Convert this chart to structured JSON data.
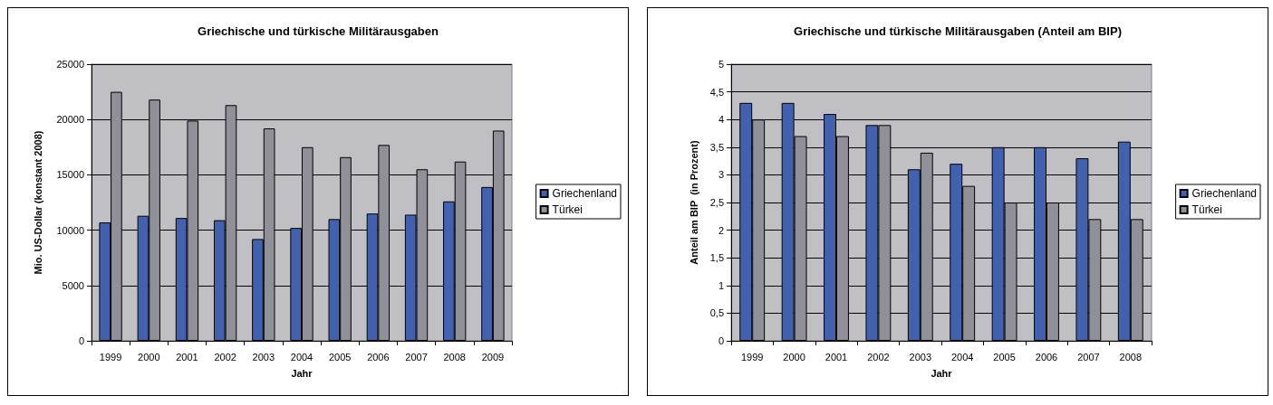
{
  "chart_data": [
    {
      "type": "bar",
      "title": "Griechische und türkische Militärausgaben",
      "xlabel": "Jahr",
      "ylabel": "Mio. US-Dollar (konstant 2008)",
      "categories": [
        "1999",
        "2000",
        "2001",
        "2002",
        "2003",
        "2004",
        "2005",
        "2006",
        "2007",
        "2008",
        "2009"
      ],
      "series": [
        {
          "name": "Griechenland",
          "color": "#4262b0",
          "values": [
            10700,
            11300,
            11100,
            10900,
            9200,
            10200,
            11000,
            11500,
            11400,
            12600,
            13900
          ]
        },
        {
          "name": "Türkei",
          "color": "#909098",
          "values": [
            22500,
            21800,
            19900,
            21300,
            19200,
            17500,
            16600,
            17700,
            15500,
            16200,
            19000
          ]
        }
      ],
      "ylim": [
        0,
        25000
      ],
      "yticks": [
        0,
        5000,
        10000,
        15000,
        20000,
        25000
      ],
      "grid": "y",
      "legend": "right"
    },
    {
      "type": "bar",
      "title": "Griechische und türkische Militärausgaben (Anteil am BIP)",
      "xlabel": "Jahr",
      "ylabel": "Anteil am BIP  (in Prozent)",
      "categories": [
        "1999",
        "2000",
        "2001",
        "2002",
        "2003",
        "2004",
        "2005",
        "2006",
        "2007",
        "2008"
      ],
      "series": [
        {
          "name": "Griechenland",
          "color": "#4262b0",
          "values": [
            4.3,
            4.3,
            4.1,
            3.9,
            3.1,
            3.2,
            3.5,
            3.5,
            3.3,
            3.6
          ]
        },
        {
          "name": "Türkei",
          "color": "#909098",
          "values": [
            4,
            3.7,
            3.7,
            3.9,
            3.4,
            2.8,
            2.5,
            2.5,
            2.2,
            2.2
          ]
        }
      ],
      "ylim": [
        0,
        5
      ],
      "yticks": [
        0,
        {
          "value": 0.5,
          "label": "0,5"
        },
        1,
        {
          "value": 1.5,
          "label": "1,5"
        },
        2,
        {
          "value": 2.5,
          "label": "2,5"
        },
        3,
        {
          "value": 3.5,
          "label": "3,5"
        },
        4,
        {
          "value": 4.5,
          "label": "4,5"
        },
        5
      ],
      "grid": "y",
      "legend": "right"
    }
  ]
}
